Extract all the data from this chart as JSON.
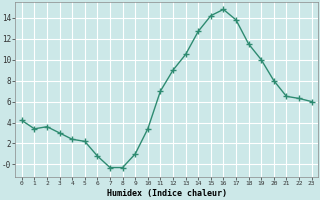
{
  "x": [
    0,
    1,
    2,
    3,
    4,
    5,
    6,
    7,
    8,
    9,
    10,
    11,
    12,
    13,
    14,
    15,
    16,
    17,
    18,
    19,
    20,
    21,
    22,
    23
  ],
  "y": [
    4.2,
    3.4,
    3.6,
    3.0,
    2.4,
    2.2,
    0.8,
    -0.3,
    -0.3,
    1.0,
    3.4,
    7.0,
    9.0,
    10.5,
    12.7,
    14.2,
    14.8,
    13.8,
    11.5,
    10.0,
    8.0,
    6.5,
    6.3,
    6.0
  ],
  "xlabel": "Humidex (Indice chaleur)",
  "ylim": [
    -1.2,
    15.5
  ],
  "yticks": [
    0,
    2,
    4,
    6,
    8,
    10,
    12,
    14
  ],
  "ytick_labels": [
    "-0",
    "2",
    "4",
    "6",
    "8",
    "10",
    "12",
    "14"
  ],
  "line_color": "#2e8b71",
  "bg_color": "#cce8e8",
  "grid_color": "#ffffff"
}
